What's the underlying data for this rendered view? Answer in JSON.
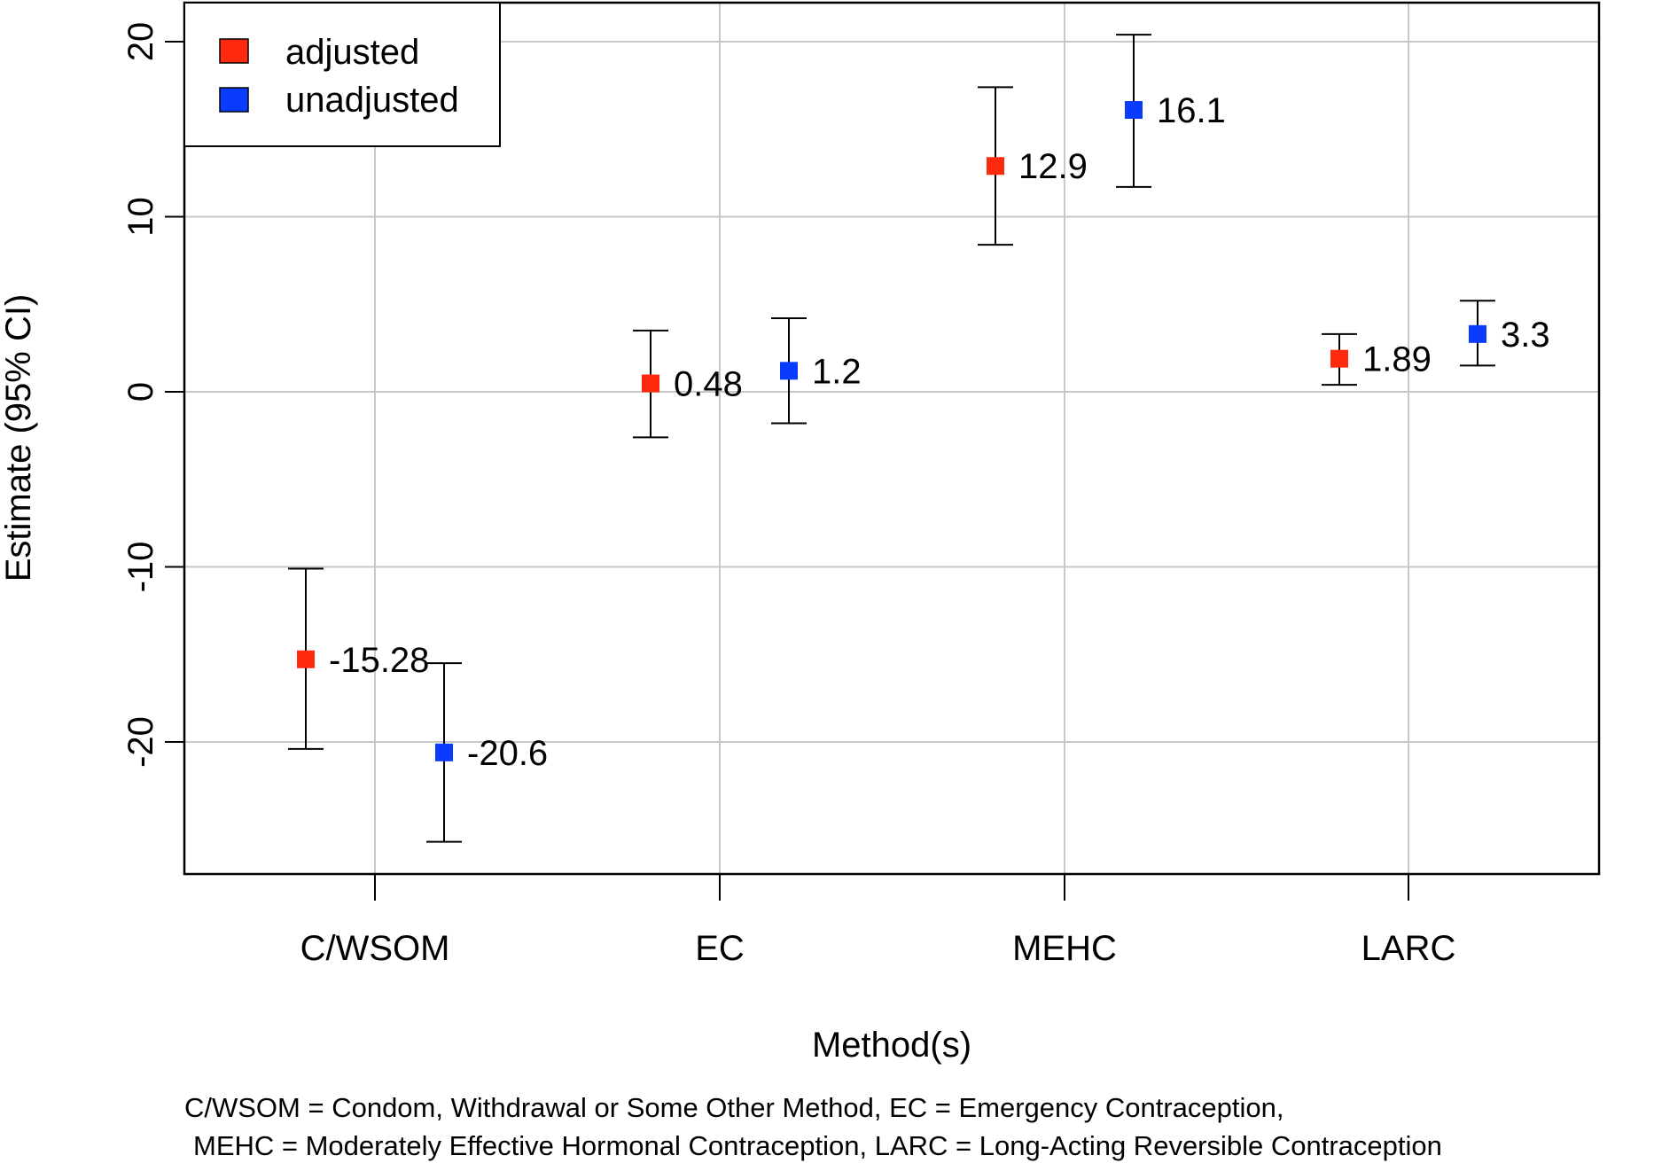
{
  "chart_data": {
    "type": "scatter",
    "subtype": "point-estimate-with-95ci",
    "xlabel": "Method(s)",
    "ylabel": "Estimate (95% CI)",
    "categories": [
      "C/WSOM",
      "EC",
      "MEHC",
      "LARC"
    ],
    "ylim": [
      -27.5,
      22.0
    ],
    "yticks": [
      -20,
      -10,
      0,
      10,
      20
    ],
    "grid": true,
    "legend": {
      "placement": "top-left",
      "entries": [
        "adjusted",
        "unadjusted"
      ]
    },
    "series": [
      {
        "name": "adjusted",
        "color": "#ff2a0e",
        "values": [
          -15.28,
          0.48,
          12.9,
          1.89
        ],
        "labels": [
          "-15.28",
          "0.48",
          "12.9",
          "1.89"
        ],
        "lower": [
          -20.4,
          -2.6,
          8.4,
          0.4
        ],
        "upper": [
          -10.1,
          3.5,
          17.4,
          3.3
        ]
      },
      {
        "name": "unadjusted",
        "color": "#0a3cff",
        "values": [
          -20.6,
          1.2,
          16.1,
          3.3
        ],
        "labels": [
          "-20.6",
          "1.2",
          "16.1",
          "3.3"
        ],
        "lower": [
          -25.7,
          -1.8,
          11.7,
          1.5
        ],
        "upper": [
          -15.5,
          4.2,
          20.4,
          5.2
        ]
      }
    ],
    "footnote": [
      "C/WSOM = Condom, Withdrawal or Some Other Method, EC = Emergency Contraception,",
      "MEHC = Moderately Effective Hormonal Contraception, LARC = Long-Acting Reversible Contraception"
    ]
  }
}
